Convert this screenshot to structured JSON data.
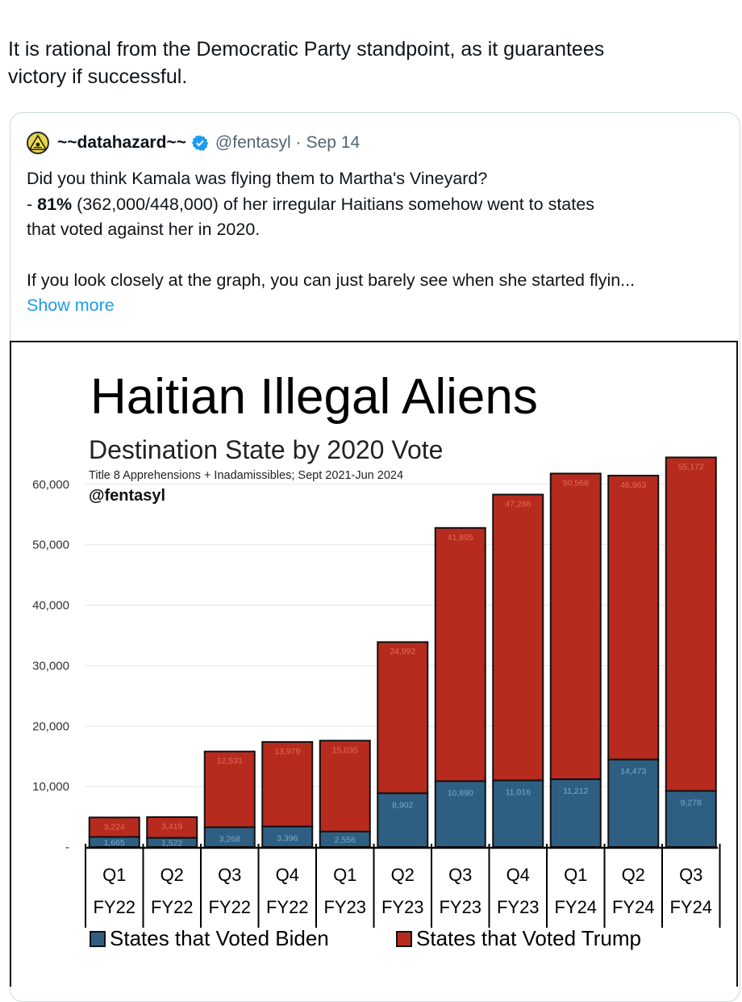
{
  "post": {
    "text_line1": "It is rational from the Democratic Party standpoint, as it guarantees",
    "text_line2": "victory if successful."
  },
  "quote": {
    "display_name": "~~datahazard~~",
    "handle": "@fentasyl",
    "separator": "·",
    "date": "Sep 14",
    "line1": "Did you think Kamala was flying them to Martha's Vineyard?",
    "line2_prefix": "- ",
    "line2_bold": "81%",
    "line2_rest": " (362,000/448,000) of her irregular Haitians somehow went to states",
    "line3": "that voted against her in 2020.",
    "line4": "If you look closely at the graph, you can just barely see when she started flyin...",
    "show_more": "Show more",
    "icons": {
      "avatar": "hazard-logo-avatar",
      "verified": "verified-badge-icon"
    },
    "colors": {
      "verified": "#1d9bf0",
      "link": "#1d9bf0",
      "handle": "#536471"
    }
  },
  "chart_data": {
    "type": "bar",
    "stacked": true,
    "title": "Haitian Illegal Aliens",
    "subtitle": "Destination State by 2020 Vote",
    "note": "Title 8 Apprehensions + Inadamissibles; Sept 2021-Jun 2024",
    "credit": "@fentasyl",
    "categories": [
      [
        "Q1",
        "FY22"
      ],
      [
        "Q2",
        "FY22"
      ],
      [
        "Q3",
        "FY22"
      ],
      [
        "Q4",
        "FY22"
      ],
      [
        "Q1",
        "FY23"
      ],
      [
        "Q2",
        "FY23"
      ],
      [
        "Q3",
        "FY23"
      ],
      [
        "Q4",
        "FY23"
      ],
      [
        "Q1",
        "FY24"
      ],
      [
        "Q2",
        "FY24"
      ],
      [
        "Q3",
        "FY24"
      ]
    ],
    "ylim": [
      0,
      65000
    ],
    "yticks": [
      0,
      10000,
      20000,
      30000,
      40000,
      50000,
      60000
    ],
    "ytick_labels": [
      "-",
      "10,000",
      "20,000",
      "30,000",
      "40,000",
      "50,000",
      "60,000"
    ],
    "grid": true,
    "legend_position": "bottom",
    "series": [
      {
        "name": "States that Voted Biden",
        "color": "#2e5f83",
        "values": [
          1665,
          1522,
          3268,
          3396,
          2556,
          8902,
          10890,
          11016,
          11212,
          14473,
          9278
        ],
        "labels": [
          "1,665",
          "1,522",
          "3,268",
          "3,396",
          "2,556",
          "8,902",
          "10,890",
          "11,016",
          "11,212",
          "14,473",
          "9,278"
        ]
      },
      {
        "name": "States that Voted Trump",
        "color": "#b72b1f",
        "values": [
          3224,
          3419,
          12531,
          13979,
          15035,
          24992,
          41895,
          47286,
          50568,
          46963,
          55172
        ],
        "labels": [
          "3,224",
          "3,419",
          "12,531",
          "13,979",
          "15,035",
          "24,992",
          "41,895",
          "47,286",
          "50,568",
          "46,963",
          "55,172"
        ]
      }
    ]
  }
}
